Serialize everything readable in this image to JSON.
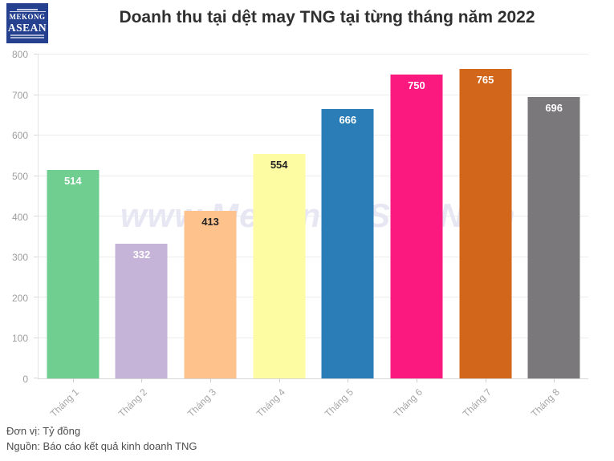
{
  "header": {
    "logo": {
      "line1": "MEKONG",
      "line2": "ASEAN"
    },
    "title": "Doanh thu tại dệt may TNG tại từng tháng năm 2022"
  },
  "watermark": "www.MekongASEAN.vn",
  "chart_data": {
    "type": "bar",
    "title": "Doanh thu tại dệt may TNG tại từng tháng năm 2022",
    "categories": [
      "Tháng 1",
      "Tháng 2",
      "Tháng 3",
      "Tháng 4",
      "Tháng 5",
      "Tháng 6",
      "Tháng 7",
      "Tháng 8"
    ],
    "values": [
      514,
      332,
      413,
      554,
      666,
      750,
      765,
      696
    ],
    "bar_colors": [
      "#6fce90",
      "#c6b4d8",
      "#fec28d",
      "#fdfca3",
      "#2b7db8",
      "#fb1980",
      "#d2661a",
      "#7a787a"
    ],
    "value_label_colors": [
      "#ffffff",
      "#ffffff",
      "#222222",
      "#222222",
      "#ffffff",
      "#ffffff",
      "#ffffff",
      "#ffffff"
    ],
    "xlabel": "",
    "ylabel": "",
    "ylim": [
      0,
      800
    ],
    "ytick_step": 100,
    "grid": true,
    "legend_position": "none",
    "unit": "Tỷ đồng"
  },
  "footer": {
    "unit_label": "Đơn vị: Tỷ đồng",
    "source_label": "Nguồn: Báo cáo kết quả kinh doanh TNG"
  }
}
